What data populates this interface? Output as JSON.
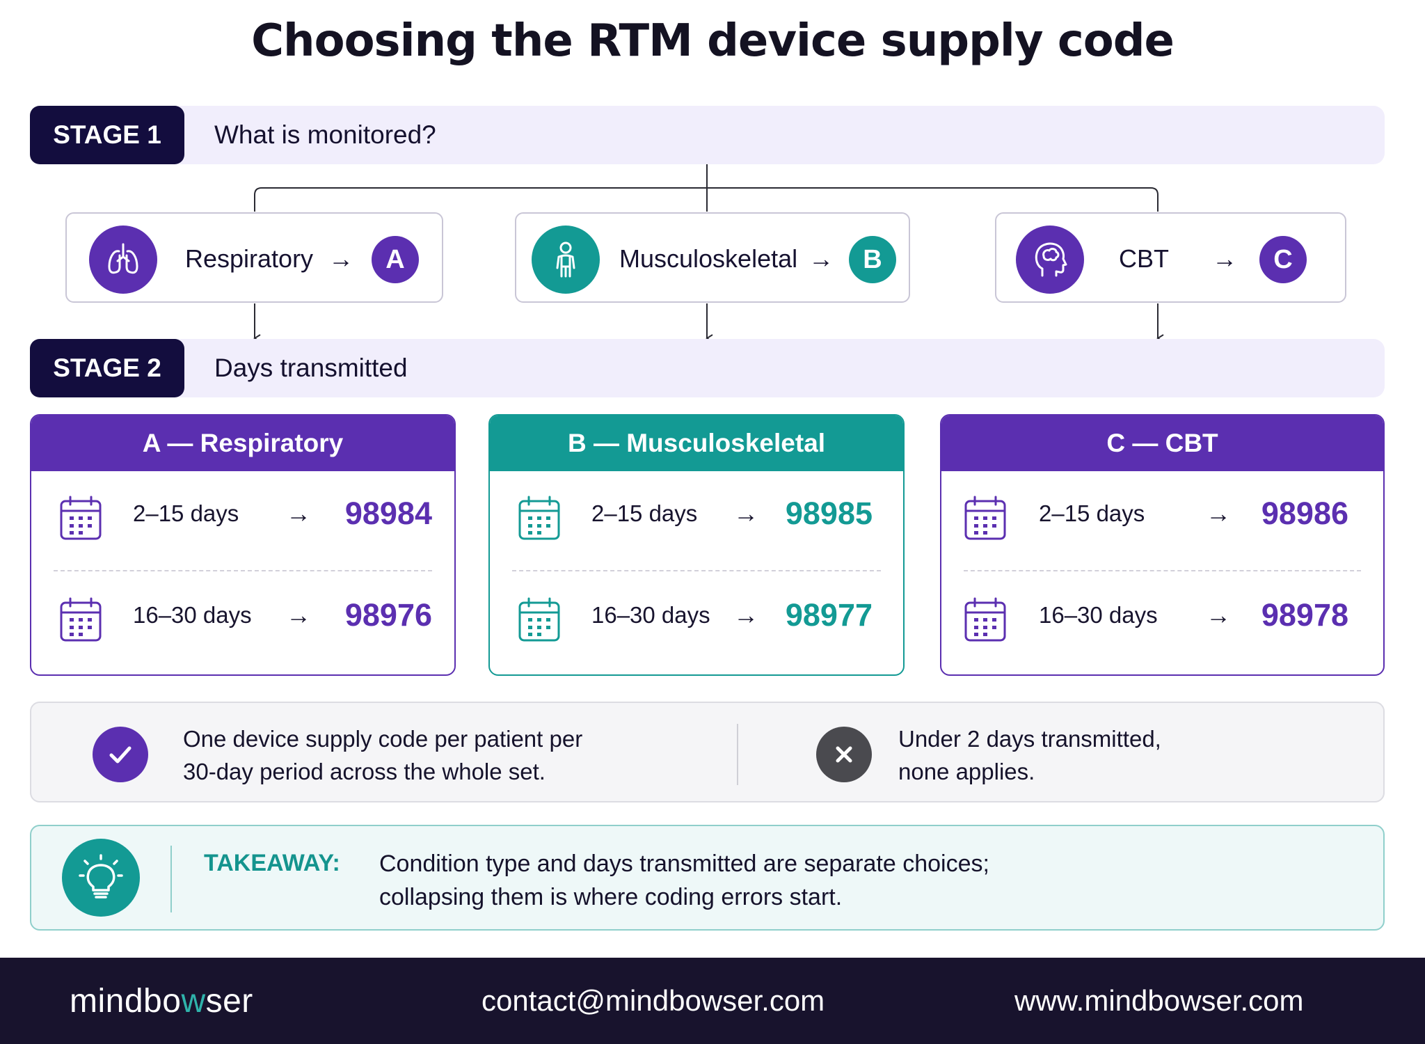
{
  "title": "Choosing the RTM device supply code",
  "colors": {
    "purple": "#5b2fb0",
    "teal": "#139a94",
    "navy": "#130d3e",
    "footer": "#18132d"
  },
  "stage1": {
    "badge": "STAGE 1",
    "question": "What is monitored?"
  },
  "stage2": {
    "badge": "STAGE 2",
    "question": "Days transmitted"
  },
  "conditions": [
    {
      "label": "Respiratory",
      "letter": "A",
      "icon": "lungs-icon",
      "arrow": "→"
    },
    {
      "label": "Musculoskeletal",
      "letter": "B",
      "icon": "person-icon",
      "arrow": "→"
    },
    {
      "label": "CBT",
      "letter": "C",
      "icon": "brain-head-icon",
      "arrow": "→"
    }
  ],
  "code_cards": [
    {
      "header": "A — Respiratory",
      "rows": [
        {
          "days": "2–15 days",
          "arrow": "→",
          "code": "98984"
        },
        {
          "days": "16–30 days",
          "arrow": "→",
          "code": "98976"
        }
      ]
    },
    {
      "header": "B — Musculoskeletal",
      "rows": [
        {
          "days": "2–15 days",
          "arrow": "→",
          "code": "98985"
        },
        {
          "days": "16–30 days",
          "arrow": "→",
          "code": "98977"
        }
      ]
    },
    {
      "header": "C — CBT",
      "rows": [
        {
          "days": "2–15 days",
          "arrow": "→",
          "code": "98986"
        },
        {
          "days": "16–30 days",
          "arrow": "→",
          "code": "98978"
        }
      ]
    }
  ],
  "notes": {
    "rule": {
      "line1": "One device supply code per patient per",
      "line2": "30-day period across the whole set.",
      "icon": "checkmark-icon"
    },
    "exception": {
      "line1": "Under 2 days transmitted,",
      "line2": "none applies.",
      "icon": "x-icon"
    }
  },
  "takeaway": {
    "label": "TAKEAWAY:",
    "line1": "Condition type and days transmitted are separate choices;",
    "line2": "collapsing them is where coding errors start.",
    "icon": "lightbulb-icon"
  },
  "footer": {
    "brand_pre": "mindbo",
    "brand_accent": "w",
    "brand_post": "ser",
    "email": "contact@mindbowser.com",
    "website": "www.mindbowser.com"
  }
}
